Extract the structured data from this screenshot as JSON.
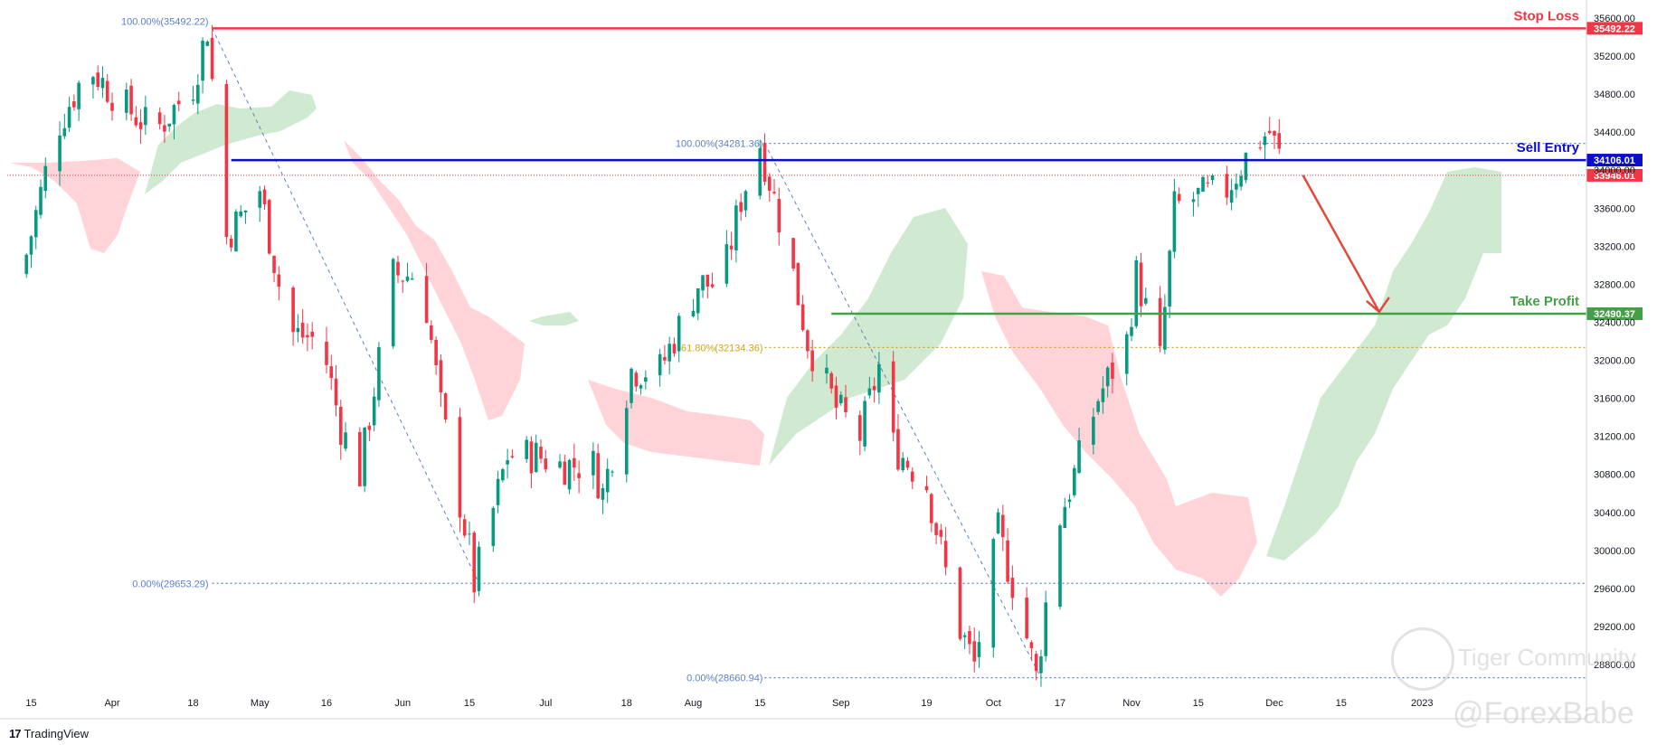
{
  "chart_data": {
    "type": "candlestick",
    "title": "",
    "y_axis": {
      "min": 28300,
      "max": 35700,
      "ticks": [
        28800,
        29200,
        29600,
        30000,
        30400,
        30800,
        31200,
        31600,
        32000,
        32400,
        32800,
        33200,
        33600,
        34000,
        34400,
        34800,
        35200,
        35600
      ],
      "tick_labels": [
        "28800.00",
        "29200.00",
        "29600.00",
        "30000.00",
        "30400.00",
        "30800.00",
        "31200.00",
        "31600.00",
        "32000.00",
        "32400.00",
        "32800.00",
        "33200.00",
        "33600.00",
        "34000.00",
        "34400.00",
        "34800.00",
        "35200.00",
        "35600.00"
      ]
    },
    "x_axis": {
      "tick_labels": [
        {
          "label": "15",
          "date": "2022-03-15"
        },
        {
          "label": "Apr",
          "date": "2022-04-01"
        },
        {
          "label": "18",
          "date": "2022-04-18"
        },
        {
          "label": "May",
          "date": "2022-05-02"
        },
        {
          "label": "16",
          "date": "2022-05-16"
        },
        {
          "label": "Jun",
          "date": "2022-06-01"
        },
        {
          "label": "15",
          "date": "2022-06-15"
        },
        {
          "label": "Jul",
          "date": "2022-07-01"
        },
        {
          "label": "18",
          "date": "2022-07-18"
        },
        {
          "label": "Aug",
          "date": "2022-08-01"
        },
        {
          "label": "15",
          "date": "2022-08-15"
        },
        {
          "label": "Sep",
          "date": "2022-09-01"
        },
        {
          "label": "19",
          "date": "2022-09-19"
        },
        {
          "label": "Oct",
          "date": "2022-10-03"
        },
        {
          "label": "17",
          "date": "2022-10-17"
        },
        {
          "label": "Nov",
          "date": "2022-11-01"
        },
        {
          "label": "15",
          "date": "2022-11-15"
        },
        {
          "label": "Dec",
          "date": "2022-12-01"
        },
        {
          "label": "15",
          "date": "2022-12-15"
        },
        {
          "label": "2023",
          "date": "2023-01-01"
        }
      ]
    },
    "price_path": [
      {
        "date": "2022-03-14",
        "close": 32900
      },
      {
        "date": "2022-03-21",
        "close": 34400
      },
      {
        "date": "2022-03-28",
        "close": 35100
      },
      {
        "date": "2022-04-04",
        "close": 34700
      },
      {
        "date": "2022-04-11",
        "close": 34400
      },
      {
        "date": "2022-04-19",
        "close": 34900
      },
      {
        "date": "2022-04-22",
        "close": 35492
      },
      {
        "date": "2022-04-26",
        "close": 33300
      },
      {
        "date": "2022-05-03",
        "close": 33800
      },
      {
        "date": "2022-05-09",
        "close": 32300
      },
      {
        "date": "2022-05-16",
        "close": 32200
      },
      {
        "date": "2022-05-20",
        "close": 31300
      },
      {
        "date": "2022-05-24",
        "close": 30800
      },
      {
        "date": "2022-05-31",
        "close": 32900
      },
      {
        "date": "2022-06-06",
        "close": 32900
      },
      {
        "date": "2022-06-10",
        "close": 31500
      },
      {
        "date": "2022-06-16",
        "close": 30000
      },
      {
        "date": "2022-06-17",
        "close": 29653
      },
      {
        "date": "2022-06-24",
        "close": 31000
      },
      {
        "date": "2022-06-30",
        "close": 31000
      },
      {
        "date": "2022-07-05",
        "close": 30900
      },
      {
        "date": "2022-07-12",
        "close": 30900
      },
      {
        "date": "2022-07-14",
        "close": 30600
      },
      {
        "date": "2022-07-20",
        "close": 31900
      },
      {
        "date": "2022-07-26",
        "close": 31900
      },
      {
        "date": "2022-08-03",
        "close": 32800
      },
      {
        "date": "2022-08-08",
        "close": 32800
      },
      {
        "date": "2022-08-12",
        "close": 33700
      },
      {
        "date": "2022-08-16",
        "close": 34281
      },
      {
        "date": "2022-08-19",
        "close": 33700
      },
      {
        "date": "2022-08-23",
        "close": 32900
      },
      {
        "date": "2022-08-26",
        "close": 32200
      },
      {
        "date": "2022-09-01",
        "close": 31500
      },
      {
        "date": "2022-09-06",
        "close": 31200
      },
      {
        "date": "2022-09-12",
        "close": 32300
      },
      {
        "date": "2022-09-13",
        "close": 31100
      },
      {
        "date": "2022-09-20",
        "close": 30700
      },
      {
        "date": "2022-09-26",
        "close": 29300
      },
      {
        "date": "2022-09-30",
        "close": 28800
      },
      {
        "date": "2022-10-05",
        "close": 30200
      },
      {
        "date": "2022-10-10",
        "close": 29300
      },
      {
        "date": "2022-10-13",
        "close": 28661
      },
      {
        "date": "2022-10-17",
        "close": 30200
      },
      {
        "date": "2022-10-21",
        "close": 30800
      },
      {
        "date": "2022-10-26",
        "close": 31600
      },
      {
        "date": "2022-11-01",
        "close": 32200
      },
      {
        "date": "2022-11-03",
        "close": 32900
      },
      {
        "date": "2022-11-08",
        "close": 32000
      },
      {
        "date": "2022-11-11",
        "close": 33600
      },
      {
        "date": "2022-11-15",
        "close": 33700
      },
      {
        "date": "2022-11-22",
        "close": 33800
      },
      {
        "date": "2022-11-28",
        "close": 34300
      },
      {
        "date": "2022-12-01",
        "close": 34400
      },
      {
        "date": "2022-12-05",
        "close": 33900
      }
    ],
    "horizontal_levels": [
      {
        "name": "Stop Loss",
        "value": 35492.22,
        "value_label": "35492.22",
        "color": "#f23645"
      },
      {
        "name": "Sell Entry",
        "value": 34106.01,
        "value_label": "34106.01",
        "color": "#0c0ccc"
      },
      {
        "name": "Take Profit",
        "value": 32490.37,
        "value_label": "32490.37",
        "color": "#43a047"
      },
      {
        "name": "",
        "value": 33946.01,
        "value_label": "33946.01",
        "color": "#f23645"
      }
    ],
    "fibonacci": [
      {
        "label": "100.00%(35492.22)",
        "value": 35492.22,
        "color": "#5b7fc7"
      },
      {
        "label": "0.00%(29653.29)",
        "value": 29653.29,
        "color": "#5b7fc7"
      },
      {
        "label": "100.00%(34281.36)",
        "value": 34281.36,
        "color": "#5b7fc7"
      },
      {
        "label": "61.80%(32134.36)",
        "value": 32134.36,
        "color": "#d4a017"
      },
      {
        "label": "0.00%(28660.94)",
        "value": 28660.94,
        "color": "#5b7fc7"
      }
    ],
    "ichimoku_cloud": {
      "bullish_color": "#c8e6c9",
      "bearish_color": "#ffcdd2"
    },
    "colors": {
      "up_candle": "#089981",
      "down_candle": "#f23645",
      "projection_arrow": "#e04a3a"
    },
    "grid": false
  },
  "branding": {
    "platform": "TradingView"
  },
  "watermarks": {
    "community": "Tiger Community",
    "author": "@ForexBabe"
  }
}
